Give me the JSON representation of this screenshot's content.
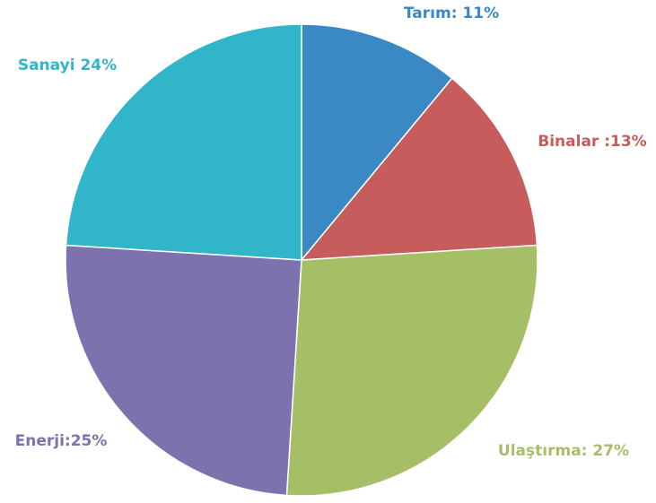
{
  "chart_data": {
    "type": "pie",
    "values": [
      11,
      13,
      27,
      25,
      24
    ],
    "value_labels": [
      "Tarım: 11%",
      "Binalar :13%",
      "Ulaştırma: 27%",
      "Enerji:25%",
      "Sanayi 24%"
    ],
    "colors": [
      "#3a89c4",
      "#c65c5b",
      "#a6bf67",
      "#7d72ae",
      "#30b5c9"
    ]
  }
}
